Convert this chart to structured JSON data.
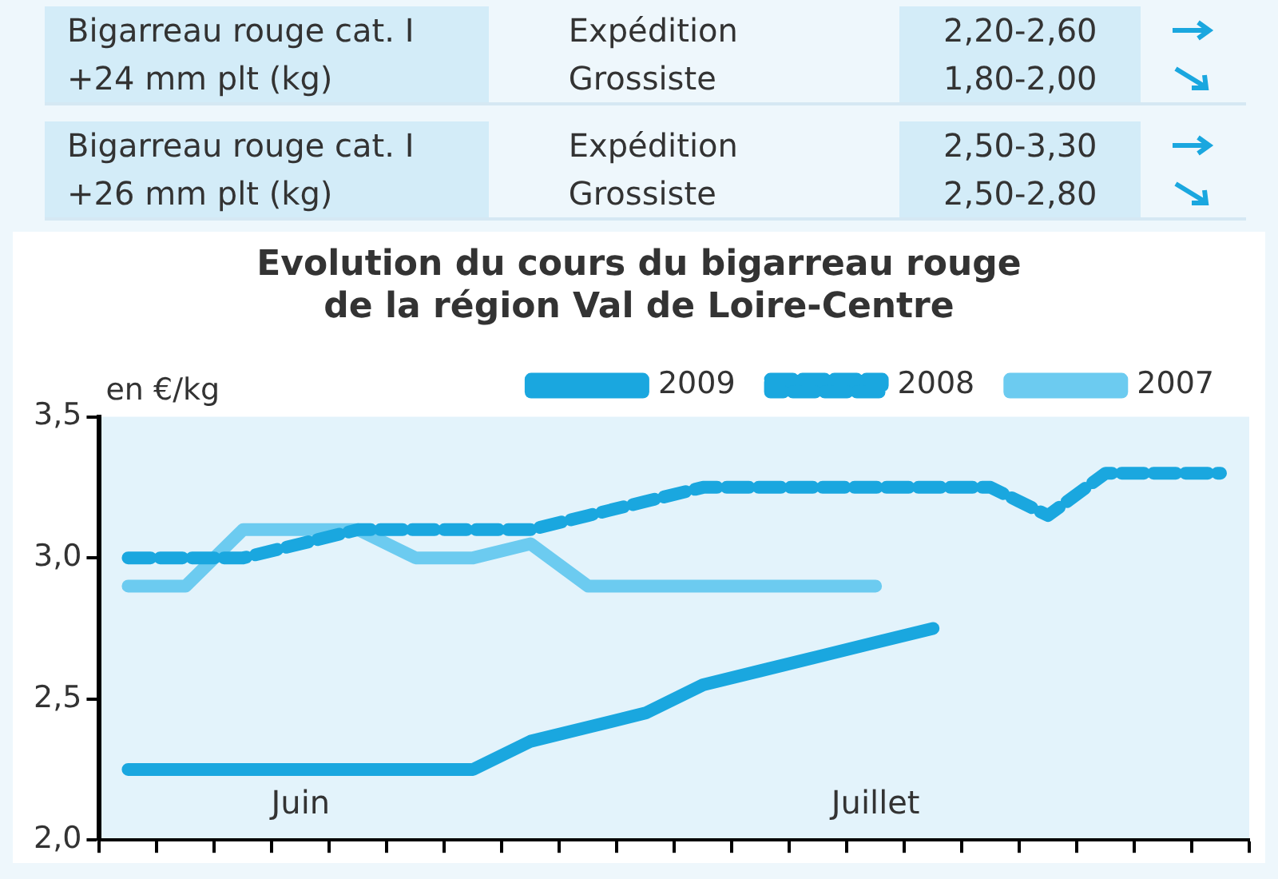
{
  "chart_data": {
    "type": "line",
    "title": "Evolution du cours du bigarreau rouge\nde la région Val de Loire-Centre",
    "ylabel": "en €/kg",
    "categories": [
      null,
      null,
      null,
      "Juin",
      null,
      null,
      null,
      null,
      null,
      null,
      null,
      null,
      null,
      "Juillet",
      null,
      null,
      null,
      null,
      null,
      null
    ],
    "series": [
      {
        "name": "2009",
        "color": "#1aa7df",
        "line_style": "solid",
        "values": [
          2.25,
          2.25,
          2.25,
          2.25,
          2.25,
          2.25,
          2.25,
          2.35,
          2.4,
          2.45,
          2.55,
          2.6,
          2.65,
          2.7,
          2.75,
          null,
          null,
          null,
          null,
          null
        ]
      },
      {
        "name": "2008",
        "color": "#1aa7df",
        "line_style": "dashed",
        "values": [
          3.0,
          3.0,
          3.0,
          3.05,
          3.1,
          3.1,
          3.1,
          3.1,
          3.15,
          3.2,
          3.25,
          3.25,
          3.25,
          3.25,
          3.25,
          3.25,
          3.15,
          3.3,
          3.3,
          3.3
        ]
      },
      {
        "name": "2007",
        "color": "#6ccbf0",
        "line_style": "solid",
        "values": [
          2.9,
          2.9,
          3.1,
          3.1,
          3.1,
          3.0,
          3.0,
          3.05,
          2.9,
          2.9,
          2.9,
          2.9,
          2.9,
          2.9,
          null,
          null,
          null,
          null,
          null,
          null
        ]
      }
    ],
    "ylim": [
      2.0,
      3.5
    ],
    "yticks": [
      {
        "value": 2.0,
        "label": "2,0"
      },
      {
        "value": 2.5,
        "label": "2,5"
      },
      {
        "value": 3.0,
        "label": "3,0"
      },
      {
        "value": 3.5,
        "label": "3,5"
      }
    ],
    "grid": false,
    "legend": "top",
    "marker": "none",
    "annotations": [
      "Bigarreau rouge cat. I\n+24 mm plt (kg)",
      "Expédition",
      "Grossiste",
      "2,20-2,60",
      "1,80-2,00",
      "Bigarreau rouge cat. I\n+26 mm plt (kg)",
      "Expédition",
      "Grossiste",
      "2,50-3,30",
      "2,50-2,80"
    ]
  }
}
